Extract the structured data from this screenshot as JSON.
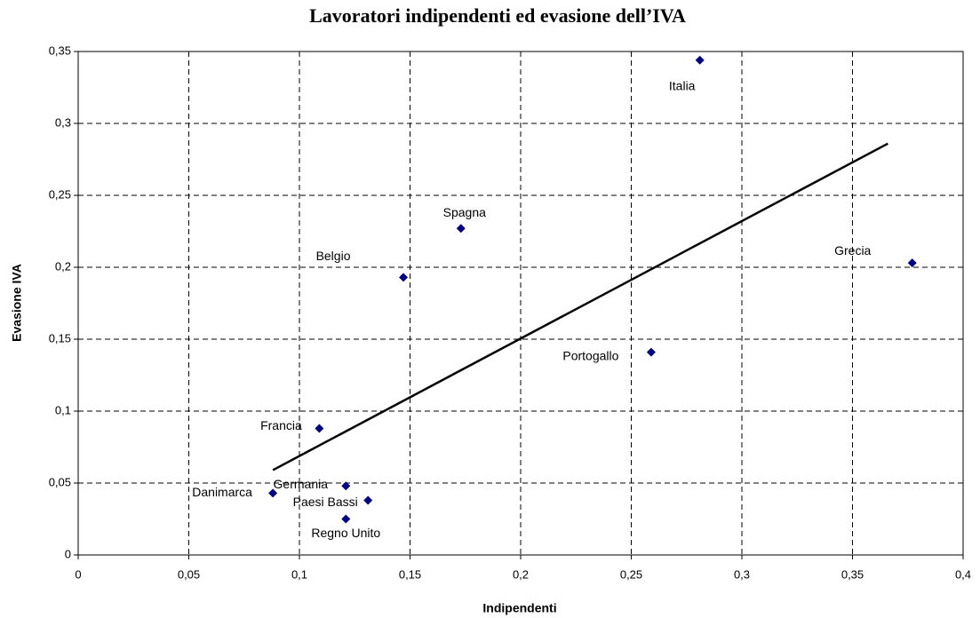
{
  "chart_data": {
    "type": "scatter",
    "title": "Lavoratori indipendenti ed evasione dell’IVA",
    "x_label": "Indipendenti",
    "y_label": "Evasione IVA",
    "labels": [
      "Italia",
      "Spagna",
      "Belgio",
      "Grecia",
      "Portogallo",
      "Francia",
      "Germania",
      "Danimarca",
      "Paesi Bassi",
      "Regno Unito"
    ],
    "x": [
      0.281,
      0.173,
      0.147,
      0.377,
      0.259,
      0.109,
      0.121,
      0.088,
      0.131,
      0.121
    ],
    "y": [
      0.344,
      0.227,
      0.193,
      0.203,
      0.141,
      0.088,
      0.048,
      0.043,
      0.038,
      0.025
    ],
    "color": "#000080",
    "trendline": {
      "x": [
        0.088,
        0.366
      ],
      "y": [
        0.059,
        0.286
      ],
      "color": "#000000"
    },
    "xlim": [
      0,
      0.4
    ],
    "xticks": [
      0,
      {
        "value": 0.05,
        "label": "0,05"
      },
      {
        "value": 0.1,
        "label": "0,1"
      },
      {
        "value": 0.15,
        "label": "0,15"
      },
      {
        "value": 0.2,
        "label": "0,2"
      },
      {
        "value": 0.25,
        "label": "0,25"
      },
      {
        "value": 0.3,
        "label": "0,3"
      },
      {
        "value": 0.35,
        "label": "0,35"
      },
      {
        "value": 0.4,
        "label": "0,4"
      }
    ],
    "ylim": [
      0,
      0.35
    ],
    "yticks": [
      0,
      {
        "value": 0.05,
        "label": "0,05"
      },
      {
        "value": 0.1,
        "label": "0,1"
      },
      {
        "value": 0.15,
        "label": "0,15"
      },
      {
        "value": 0.2,
        "label": "0,2"
      },
      {
        "value": 0.25,
        "label": "0,25"
      },
      {
        "value": 0.3,
        "label": "0,3"
      },
      {
        "value": 0.35,
        "label": "0,35"
      }
    ],
    "grid": true
  }
}
